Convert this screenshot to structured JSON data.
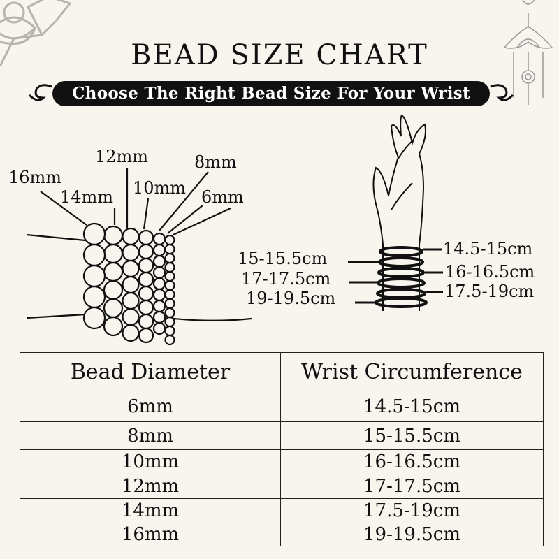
{
  "title": "BEAD SIZE CHART",
  "subtitle": "Choose The Right Bead Size For Your Wrist",
  "bead_labels": [
    "16mm",
    "14mm",
    "12mm",
    "10mm",
    "8mm",
    "6mm"
  ],
  "wrist_labels_left": [
    "15-15.5cm",
    "17-17.5cm",
    "19-19.5cm"
  ],
  "wrist_labels_right": [
    "14.5-15cm",
    "16-16.5cm",
    "17.5-19cm"
  ],
  "table": {
    "headers": [
      "Bead Diameter",
      "Wrist Circumference"
    ],
    "rows": [
      [
        "6mm",
        "14.5-15cm"
      ],
      [
        "8mm",
        "15-15.5cm"
      ],
      [
        "10mm",
        "16-16.5cm"
      ],
      [
        "12mm",
        "17-17.5cm"
      ],
      [
        "14mm",
        "17.5-19cm"
      ],
      [
        "16mm",
        "19-19.5cm"
      ]
    ]
  },
  "colors": {
    "background": "#f8f5ee",
    "ink": "#111111",
    "ornament": "#b8b3aa"
  },
  "icons": [
    "lotus-ornament-icon",
    "hanging-lotus-ornament-icon",
    "bead-bracelet-illustration",
    "hand-with-bracelets-illustration"
  ]
}
